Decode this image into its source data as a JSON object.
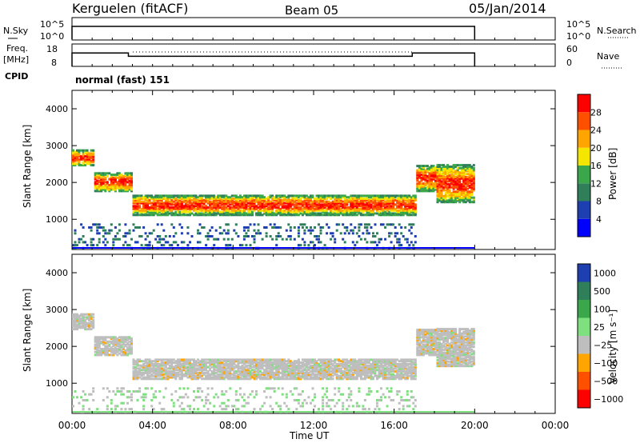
{
  "header": {
    "site": "Kerguelen (fitACF)",
    "beam": "Beam 05",
    "date": "05/Jan/2014"
  },
  "left_labels": {
    "nsky": "N.Sky",
    "freq": "Freq.",
    "freq_unit": "[MHz]",
    "cpid": "CPID"
  },
  "right_labels": {
    "nsearch": "N.Search",
    "nave": "Nave"
  },
  "cpid_text": "normal (fast) 151",
  "noise_panel": {
    "left_ticks": [
      "10^5",
      "10^0"
    ],
    "right_ticks": [
      "10^5",
      "10^0"
    ]
  },
  "freq_panel": {
    "left_ticks": [
      "18",
      "8"
    ],
    "right_ticks": [
      "60",
      "0"
    ]
  },
  "chart_data": [
    {
      "type": "line",
      "name": "noise",
      "x_range_hours": [
        0,
        24
      ],
      "data_coverage_hours": [
        0,
        20
      ],
      "segments": [
        {
          "x": [
            0,
            0,
            20,
            20
          ],
          "level": "high"
        }
      ]
    },
    {
      "type": "line",
      "name": "frequency_and_nave",
      "ylim_freq": [
        8,
        18
      ],
      "ylim_nave": [
        0,
        60
      ],
      "freq_steps": [
        {
          "from": 0,
          "to": 2.8,
          "value": 14
        },
        {
          "from": 2.8,
          "to": 16.9,
          "value": 12.5
        },
        {
          "from": 16.9,
          "to": 20,
          "value": 14
        }
      ]
    },
    {
      "type": "heatmap",
      "name": "power",
      "ylabel": "Slant Range [km]",
      "yticks": [
        1000,
        2000,
        3000,
        4000
      ],
      "ylim": [
        180,
        4500
      ],
      "colorbar_label": "Power [dB]",
      "colorbar_ticks": [
        "28",
        "24",
        "20",
        "16",
        "12",
        "8",
        "4"
      ],
      "colorbar_colors": [
        "#0000ff",
        "#1e3fb0",
        "#2e7f5a",
        "#3aa84a",
        "#f5e600",
        "#ffa500",
        "#ff5000",
        "#ff0000"
      ],
      "bands": [
        {
          "from": 0.0,
          "to": 1.0,
          "lo": 2500,
          "hi": 2900
        },
        {
          "from": 1.0,
          "to": 3.0,
          "lo": 1800,
          "hi": 2300
        },
        {
          "from": 3.0,
          "to": 17.0,
          "lo": 1150,
          "hi": 1700
        },
        {
          "from": 17.0,
          "to": 18.0,
          "lo": 1800,
          "hi": 2500
        },
        {
          "from": 18.0,
          "to": 20.0,
          "lo": 1500,
          "hi": 2500
        }
      ]
    },
    {
      "type": "heatmap",
      "name": "velocity",
      "ylabel": "Slant Range [km]",
      "yticks": [
        1000,
        2000,
        3000,
        4000
      ],
      "ylim": [
        180,
        4500
      ],
      "colorbar_label": "Velocity [m s⁻¹]",
      "colorbar_ticks": [
        "1000",
        "500",
        "100",
        "25",
        "−25",
        "−100",
        "−500",
        "−1000"
      ],
      "colorbar_colors": [
        "#1e3fb0",
        "#2e7f5a",
        "#3aa84a",
        "#7fe07f",
        "#bebebe",
        "#ffa500",
        "#ff5000",
        "#ff0000"
      ],
      "xlabel": "Time UT",
      "xticks": [
        "00:00",
        "04:00",
        "08:00",
        "12:00",
        "16:00",
        "20:00",
        "00:00"
      ]
    }
  ]
}
